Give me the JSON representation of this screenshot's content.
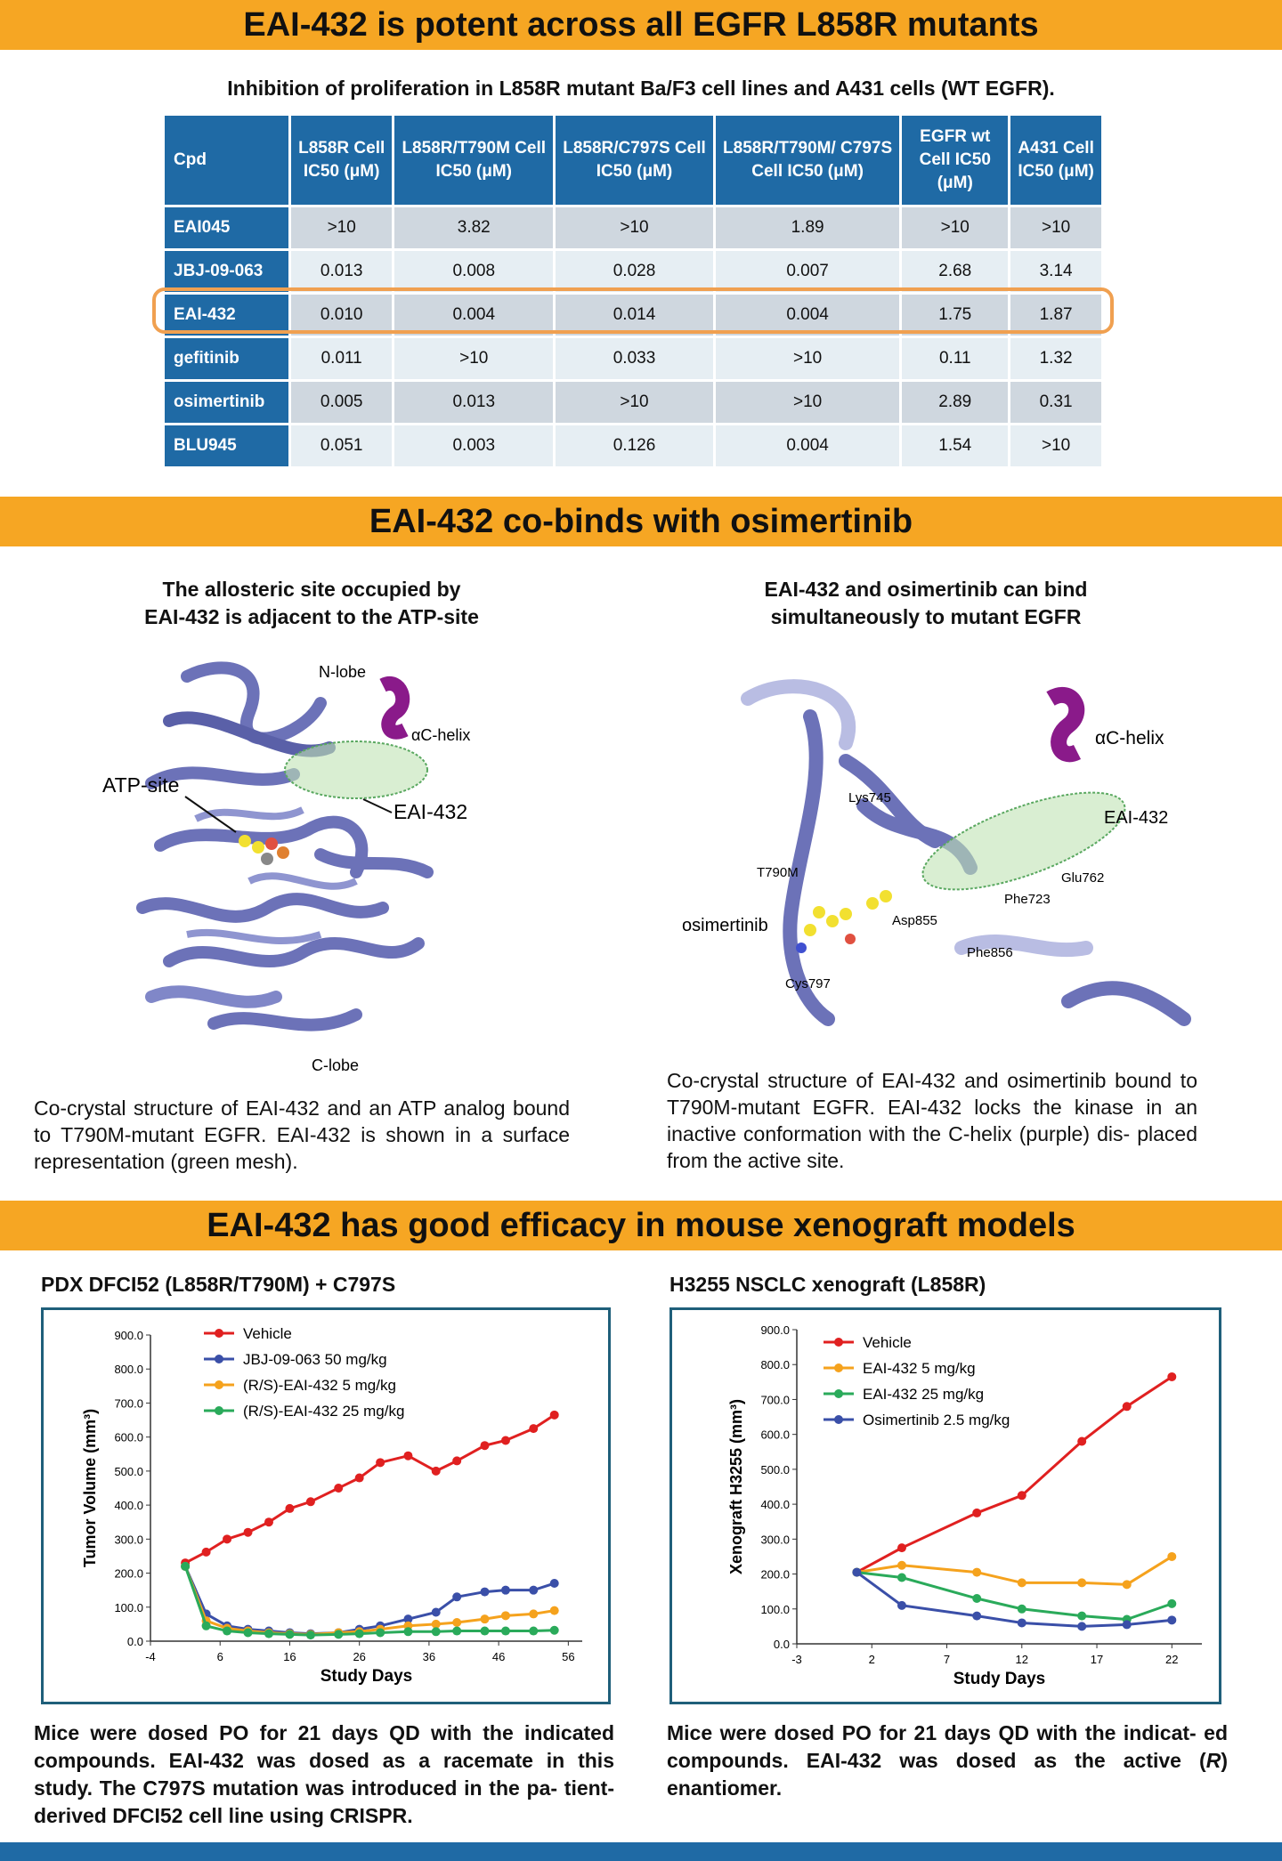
{
  "banner1": "EAI-432 is potent across all EGFR L858R mutants",
  "table_title": "Inhibition of proliferation in L858R mutant Ba/F3 cell lines and A431 cells (WT EGFR).",
  "table": {
    "headers": [
      "Cpd",
      "L858R Cell IC50 (μM)",
      "L858R/T790M Cell IC50 (μM)",
      "L858R/C797S Cell IC50 (μM)",
      "L858R/T790M/ C797S Cell IC50 (μM)",
      "EGFR wt Cell IC50 (μM)",
      "A431 Cell IC50 (μM)"
    ],
    "rows": [
      [
        "EAI045",
        ">10",
        "3.82",
        ">10",
        "1.89",
        ">10",
        ">10"
      ],
      [
        "JBJ-09-063",
        "0.013",
        "0.008",
        "0.028",
        "0.007",
        "2.68",
        "3.14"
      ],
      [
        "EAI-432",
        "0.010",
        "0.004",
        "0.014",
        "0.004",
        "1.75",
        "1.87"
      ],
      [
        "gefitinib",
        "0.011",
        ">10",
        "0.033",
        ">10",
        "0.11",
        "1.32"
      ],
      [
        "osimertinib",
        "0.005",
        "0.013",
        ">10",
        ">10",
        "2.89",
        "0.31"
      ],
      [
        "BLU945",
        "0.051",
        "0.003",
        "0.126",
        "0.004",
        "1.54",
        ">10"
      ]
    ],
    "highlighted_row": "EAI-432"
  },
  "banner2": "EAI-432 co-binds with osimertinib",
  "left_struct": {
    "title_l1": "The allosteric site occupied by",
    "title_l2": "EAI-432 is adjacent to the ATP-site",
    "labels": {
      "nlobe": "N-lobe",
      "helix": "αC-helix",
      "atp": "ATP-site",
      "eai": "EAI-432",
      "clobe": "C-lobe"
    },
    "caption": "Co-crystal structure of EAI-432 and an ATP analog bound to T790M-mutant EGFR. EAI-432 is shown in a surface representation (green mesh)."
  },
  "right_struct": {
    "title_l1": "EAI-432 and osimertinib can bind",
    "title_l2": "simultaneously to mutant EGFR",
    "labels": {
      "helix": "αC-helix",
      "eai": "EAI-432",
      "lys": "Lys745",
      "t790": "T790M",
      "glu": "Glu762",
      "phe723": "Phe723",
      "osi": "osimertinib",
      "asp": "Asp855",
      "phe856": "Phe856",
      "cys": "Cys797"
    },
    "caption": "Co-crystal structure of EAI-432 and osimertinib bound to T790M-mutant EGFR. EAI-432 locks the kinase in an inactive conformation with the C-helix (purple) dis- placed from the active site."
  },
  "banner3": "EAI-432 has good efficacy in mouse xenograft models",
  "chart_data": [
    {
      "type": "line",
      "title": "PDX DFCI52 (L858R/T790M) + C797S",
      "xlabel": "Study Days",
      "ylabel": "Tumor Volume (mm³)",
      "xlim": [
        -4,
        58
      ],
      "ylim": [
        0,
        900
      ],
      "xticks": [
        "-4",
        "6",
        "16",
        "26",
        "36",
        "46",
        "56"
      ],
      "yticks": [
        "0.0",
        "100.0",
        "200.0",
        "300.0",
        "400.0",
        "500.0",
        "600.0",
        "700.0",
        "800.0",
        "900.0"
      ],
      "series": [
        {
          "name": "Vehicle",
          "color": "#e02020",
          "x": [
            1,
            4,
            7,
            10,
            13,
            16,
            19,
            23,
            26,
            29,
            33,
            37,
            40,
            44,
            47,
            51,
            54
          ],
          "values": [
            230,
            262,
            300,
            320,
            350,
            390,
            410,
            450,
            480,
            525,
            545,
            500,
            530,
            575,
            590,
            625,
            665
          ],
          "err": [
            0,
            0,
            0,
            0,
            0,
            0,
            0,
            0,
            0,
            0,
            0,
            0,
            0,
            0,
            0,
            0,
            0
          ]
        },
        {
          "name": "JBJ-09-063 50 mg/kg",
          "color": "#3a4fa8",
          "x": [
            1,
            4,
            7,
            10,
            13,
            16,
            19,
            23,
            26,
            29,
            33,
            37,
            40,
            44,
            47,
            51,
            54
          ],
          "values": [
            220,
            80,
            45,
            35,
            30,
            25,
            22,
            25,
            35,
            45,
            65,
            85,
            130,
            145,
            150,
            150,
            170
          ],
          "err": [
            0,
            0,
            0,
            0,
            0,
            0,
            0,
            0,
            0,
            0,
            0,
            0,
            0,
            0,
            0,
            0,
            0
          ]
        },
        {
          "name": "(R/S)-EAI-432 5 mg/kg",
          "color": "#f5a21d",
          "x": [
            1,
            4,
            7,
            10,
            13,
            16,
            19,
            23,
            26,
            29,
            33,
            37,
            40,
            44,
            47,
            51,
            54
          ],
          "values": [
            220,
            60,
            38,
            30,
            25,
            22,
            20,
            25,
            28,
            35,
            45,
            50,
            55,
            65,
            75,
            80,
            90
          ],
          "err": [
            0,
            0,
            0,
            0,
            0,
            0,
            0,
            0,
            0,
            0,
            0,
            0,
            0,
            0,
            0,
            0,
            0
          ]
        },
        {
          "name": "(R/S)-EAI-432 25 mg/kg",
          "color": "#2aaa5a",
          "x": [
            1,
            4,
            7,
            10,
            13,
            16,
            19,
            23,
            26,
            29,
            33,
            37,
            40,
            44,
            47,
            51,
            54
          ],
          "values": [
            220,
            45,
            30,
            25,
            22,
            20,
            18,
            20,
            22,
            25,
            28,
            28,
            30,
            30,
            30,
            30,
            32
          ],
          "err": [
            0,
            0,
            0,
            0,
            0,
            0,
            0,
            0,
            0,
            0,
            0,
            0,
            0,
            0,
            0,
            0,
            0
          ]
        }
      ]
    },
    {
      "type": "line",
      "title": "H3255 NSCLC xenograft (L858R)",
      "xlabel": "Study Days",
      "ylabel": "Xenograft H3255 (mm³)",
      "xlim": [
        -3,
        24
      ],
      "ylim": [
        0,
        900
      ],
      "xticks": [
        "-3",
        "2",
        "7",
        "12",
        "17",
        "22"
      ],
      "yticks": [
        "0.0",
        "100.0",
        "200.0",
        "300.0",
        "400.0",
        "500.0",
        "600.0",
        "700.0",
        "800.0",
        "900.0"
      ],
      "series": [
        {
          "name": "Vehicle",
          "color": "#e02020",
          "x": [
            1,
            4,
            9,
            12,
            16,
            19,
            22
          ],
          "values": [
            205,
            275,
            375,
            425,
            580,
            680,
            765
          ],
          "err": [
            0,
            0,
            0,
            0,
            0,
            0,
            0
          ]
        },
        {
          "name": "EAI-432 5 mg/kg",
          "color": "#f5a21d",
          "x": [
            1,
            4,
            9,
            12,
            16,
            19,
            22
          ],
          "values": [
            205,
            225,
            205,
            175,
            175,
            170,
            250
          ],
          "err": [
            0,
            0,
            0,
            0,
            0,
            0,
            0
          ]
        },
        {
          "name": "EAI-432 25 mg/kg",
          "color": "#2aaa5a",
          "x": [
            1,
            4,
            9,
            12,
            16,
            19,
            22
          ],
          "values": [
            205,
            190,
            130,
            100,
            80,
            70,
            115
          ],
          "err": [
            0,
            0,
            0,
            0,
            0,
            0,
            0
          ]
        },
        {
          "name": "Osimertinib 2.5 mg/kg",
          "color": "#3a4fa8",
          "x": [
            1,
            4,
            9,
            12,
            16,
            19,
            22
          ],
          "values": [
            205,
            110,
            80,
            60,
            50,
            55,
            68
          ],
          "err": [
            0,
            0,
            0,
            0,
            0,
            0,
            0
          ]
        }
      ]
    }
  ],
  "left_chart_caption": "Mice were dosed PO for 21 days QD with the indicated compounds. EAI-432 was dosed as a racemate in this study. The C797S mutation was introduced in the pa- tient-derived DFCI52 cell line using CRISPR.",
  "right_chart_caption_a": "Mice were dosed PO for 21 days QD with the indicat- ed compounds. EAI-432 was dosed as the active (",
  "right_chart_caption_r": "R",
  "right_chart_caption_b": ") enantiomer."
}
